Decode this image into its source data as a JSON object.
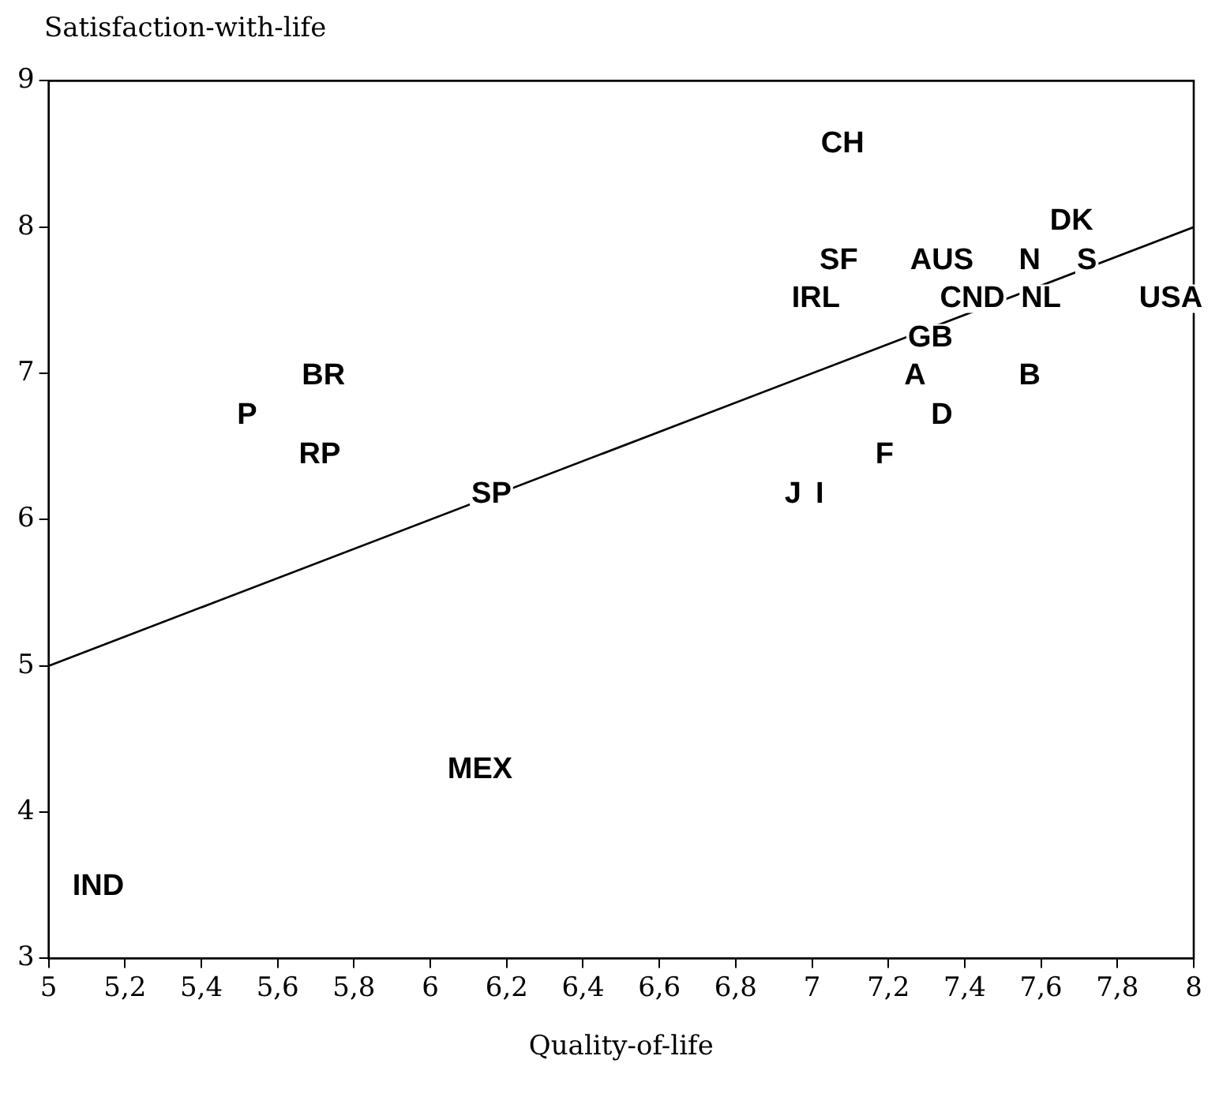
{
  "chart_data": {
    "type": "scatter",
    "xlabel": "Quality-of-life",
    "ylabel": "Satisfaction-with-life",
    "xlim": [
      5,
      8
    ],
    "ylim": [
      3,
      9
    ],
    "xticks": [
      5,
      {
        "value": 5.2,
        "label": "5,2"
      },
      {
        "value": 5.4,
        "label": "5,4"
      },
      {
        "value": 5.6,
        "label": "5,6"
      },
      {
        "value": 5.8,
        "label": "5,8"
      },
      6,
      {
        "value": 6.2,
        "label": "6,2"
      },
      {
        "value": 6.4,
        "label": "6,4"
      },
      {
        "value": 6.6,
        "label": "6,6"
      },
      {
        "value": 6.8,
        "label": "6,8"
      },
      7,
      {
        "value": 7.2,
        "label": "7,2"
      },
      {
        "value": 7.4,
        "label": "7,4"
      },
      {
        "value": 7.6,
        "label": "7,6"
      },
      {
        "value": 7.8,
        "label": "7,8"
      },
      8
    ],
    "yticks": [
      3,
      4,
      5,
      6,
      7,
      8,
      9
    ],
    "grid": false,
    "legend": false,
    "series": [
      {
        "type": "line",
        "color": "#000000",
        "x": [
          5,
          8
        ],
        "values": [
          5,
          8
        ]
      }
    ],
    "annotations": [
      {
        "text": "CH",
        "x": 7.08,
        "y": 8.57
      },
      {
        "text": "DK",
        "x": 7.68,
        "y": 8.04
      },
      {
        "text": "SF",
        "x": 7.07,
        "y": 7.77
      },
      {
        "text": "AUS",
        "x": 7.34,
        "y": 7.77
      },
      {
        "text": "N",
        "x": 7.57,
        "y": 7.77
      },
      {
        "text": "S",
        "x": 7.72,
        "y": 7.77
      },
      {
        "text": "IRL",
        "x": 7.01,
        "y": 7.51
      },
      {
        "text": "CND",
        "x": 7.42,
        "y": 7.51
      },
      {
        "text": "NL",
        "x": 7.6,
        "y": 7.51
      },
      {
        "text": "USA",
        "x": 7.94,
        "y": 7.51
      },
      {
        "text": "GB",
        "x": 7.31,
        "y": 7.24
      },
      {
        "text": "BR",
        "x": 5.72,
        "y": 6.98
      },
      {
        "text": "A",
        "x": 7.27,
        "y": 6.98
      },
      {
        "text": "B",
        "x": 7.57,
        "y": 6.98
      },
      {
        "text": "P",
        "x": 5.52,
        "y": 6.71
      },
      {
        "text": "D",
        "x": 7.34,
        "y": 6.71
      },
      {
        "text": "RP",
        "x": 5.71,
        "y": 6.44
      },
      {
        "text": "F",
        "x": 7.19,
        "y": 6.44
      },
      {
        "text": "SP",
        "x": 6.16,
        "y": 6.17
      },
      {
        "text": "J",
        "x": 6.95,
        "y": 6.17
      },
      {
        "text": "I",
        "x": 7.02,
        "y": 6.17
      },
      {
        "text": "MEX",
        "x": 6.13,
        "y": 4.29
      },
      {
        "text": "IND",
        "x": 5.13,
        "y": 3.49
      }
    ]
  }
}
